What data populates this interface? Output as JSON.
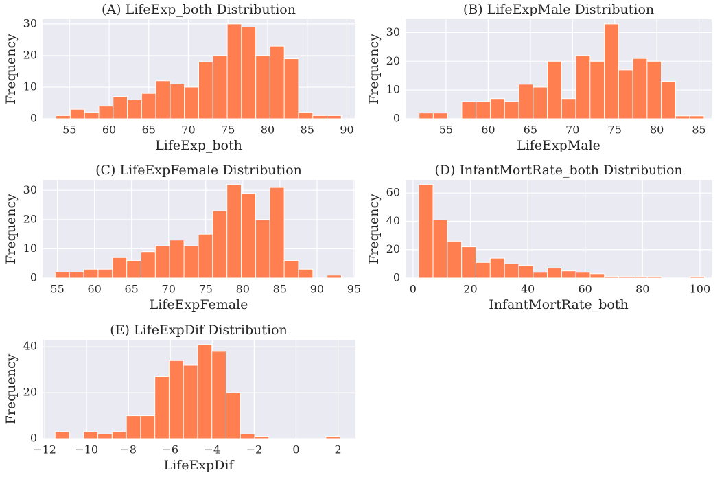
{
  "chart_data": [
    {
      "type": "histogram",
      "title": "(A) LifeExp_both Distribution",
      "xlabel": "LifeExp_both",
      "ylabel": "Frequency",
      "color": "#ff7f50",
      "bins": [
        53.3,
        55.1,
        56.9,
        58.7,
        60.5,
        62.3,
        64.1,
        65.9,
        67.7,
        69.5,
        71.3,
        73.1,
        74.9,
        76.7,
        78.5,
        80.3,
        82.1,
        83.9,
        85.7,
        87.5,
        89.3
      ],
      "values": [
        1,
        3,
        2,
        4,
        7,
        6,
        8,
        12,
        11,
        10,
        18,
        20,
        30,
        29,
        20,
        23,
        19,
        2,
        1,
        1
      ],
      "xlim": [
        51.6,
        91.0
      ],
      "ylim": [
        0,
        31.5
      ],
      "xticks": [
        55,
        60,
        65,
        70,
        75,
        80,
        85,
        90
      ],
      "yticks": [
        0,
        10,
        20,
        30
      ],
      "grid": true
    },
    {
      "type": "histogram",
      "title": "(B) LifeExpMale Distribution",
      "xlabel": "LifeExpMale",
      "ylabel": "Frequency",
      "color": "#ff7f50",
      "bins": [
        51.8,
        53.49,
        55.18,
        56.87,
        58.56,
        60.25,
        61.94,
        63.63,
        65.32,
        67.01,
        68.7,
        70.39,
        72.08,
        73.77,
        75.46,
        77.15,
        78.84,
        80.53,
        82.22,
        83.91,
        85.6
      ],
      "values": [
        2,
        2,
        0,
        6,
        6,
        7,
        6,
        12,
        11,
        20,
        7,
        22,
        20,
        33,
        17,
        21,
        20,
        13,
        1,
        1
      ],
      "xlim": [
        50.2,
        86.5
      ],
      "ylim": [
        0,
        34.65
      ],
      "xticks": [
        55,
        60,
        65,
        70,
        75,
        80,
        85
      ],
      "yticks": [
        0,
        10,
        20,
        30
      ],
      "grid": true
    },
    {
      "type": "histogram",
      "title": "(C) LifeExpFemale Distribution",
      "xlabel": "LifeExpFemale",
      "ylabel": "Frequency",
      "color": "#ff7f50",
      "bins": [
        54.7,
        56.63,
        58.56,
        60.49,
        62.42,
        64.35,
        66.28,
        68.21,
        70.14,
        72.07,
        74.0,
        75.93,
        77.86,
        79.79,
        81.72,
        83.65,
        85.58,
        87.51,
        89.44,
        91.37,
        93.3
      ],
      "values": [
        2,
        2,
        3,
        3,
        7,
        6,
        9,
        11,
        13,
        11,
        15,
        23,
        32,
        29,
        20,
        31,
        6,
        3,
        0,
        1
      ],
      "xlim": [
        53.0,
        95.1
      ],
      "ylim": [
        0,
        33.6
      ],
      "xticks": [
        55,
        60,
        65,
        70,
        75,
        80,
        85,
        90,
        95
      ],
      "yticks": [
        0,
        10,
        20,
        30
      ],
      "grid": true
    },
    {
      "type": "histogram",
      "title": "(D) InfantMortRate_both Distribution",
      "xlabel": "InfantMortRate_both",
      "ylabel": "Frequency",
      "color": "#ff7f50",
      "bins": [
        2.0,
        6.98,
        11.96,
        16.94,
        21.92,
        26.9,
        31.88,
        36.86,
        41.84,
        46.82,
        51.8,
        56.78,
        61.76,
        66.74,
        71.72,
        76.7,
        81.68,
        86.66,
        91.64,
        96.62,
        101.6
      ],
      "values": [
        66,
        41,
        26,
        22,
        11,
        14,
        10,
        9,
        4,
        7,
        5,
        4,
        3,
        1,
        1,
        1,
        1,
        0,
        0,
        1
      ],
      "xlim": [
        -2.6,
        104.1
      ],
      "ylim": [
        0,
        69.3
      ],
      "xticks": [
        0,
        20,
        40,
        60,
        80,
        100
      ],
      "yticks": [
        0,
        20,
        40,
        60
      ],
      "grid": true
    },
    {
      "type": "histogram",
      "title": "(E) LifeExpDif Distribution",
      "xlabel": "LifeExpDif",
      "ylabel": "Frequency",
      "color": "#ff7f50",
      "bins": [
        -11.5,
        -10.82,
        -10.14,
        -9.46,
        -8.78,
        -8.1,
        -7.42,
        -6.74,
        -6.06,
        -5.38,
        -4.7,
        -4.02,
        -3.34,
        -2.66,
        -1.98,
        -1.3,
        -0.62,
        0.06,
        0.74,
        1.42,
        2.1
      ],
      "values": [
        3,
        0,
        3,
        2,
        3,
        10,
        10,
        27,
        34,
        32,
        41,
        38,
        20,
        2,
        1,
        0,
        0,
        0,
        0,
        1
      ],
      "xlim": [
        -12.1,
        2.8
      ],
      "ylim": [
        0,
        43.05
      ],
      "xticks": [
        {
          "value": -12,
          "label": "−12"
        },
        {
          "value": -10,
          "label": "−10"
        },
        {
          "value": -8,
          "label": "−8"
        },
        {
          "value": -6,
          "label": "−6"
        },
        {
          "value": -4,
          "label": "−4"
        },
        {
          "value": -2,
          "label": "−2"
        },
        0,
        2
      ],
      "yticks": [
        0,
        20,
        40
      ],
      "grid": true
    }
  ]
}
